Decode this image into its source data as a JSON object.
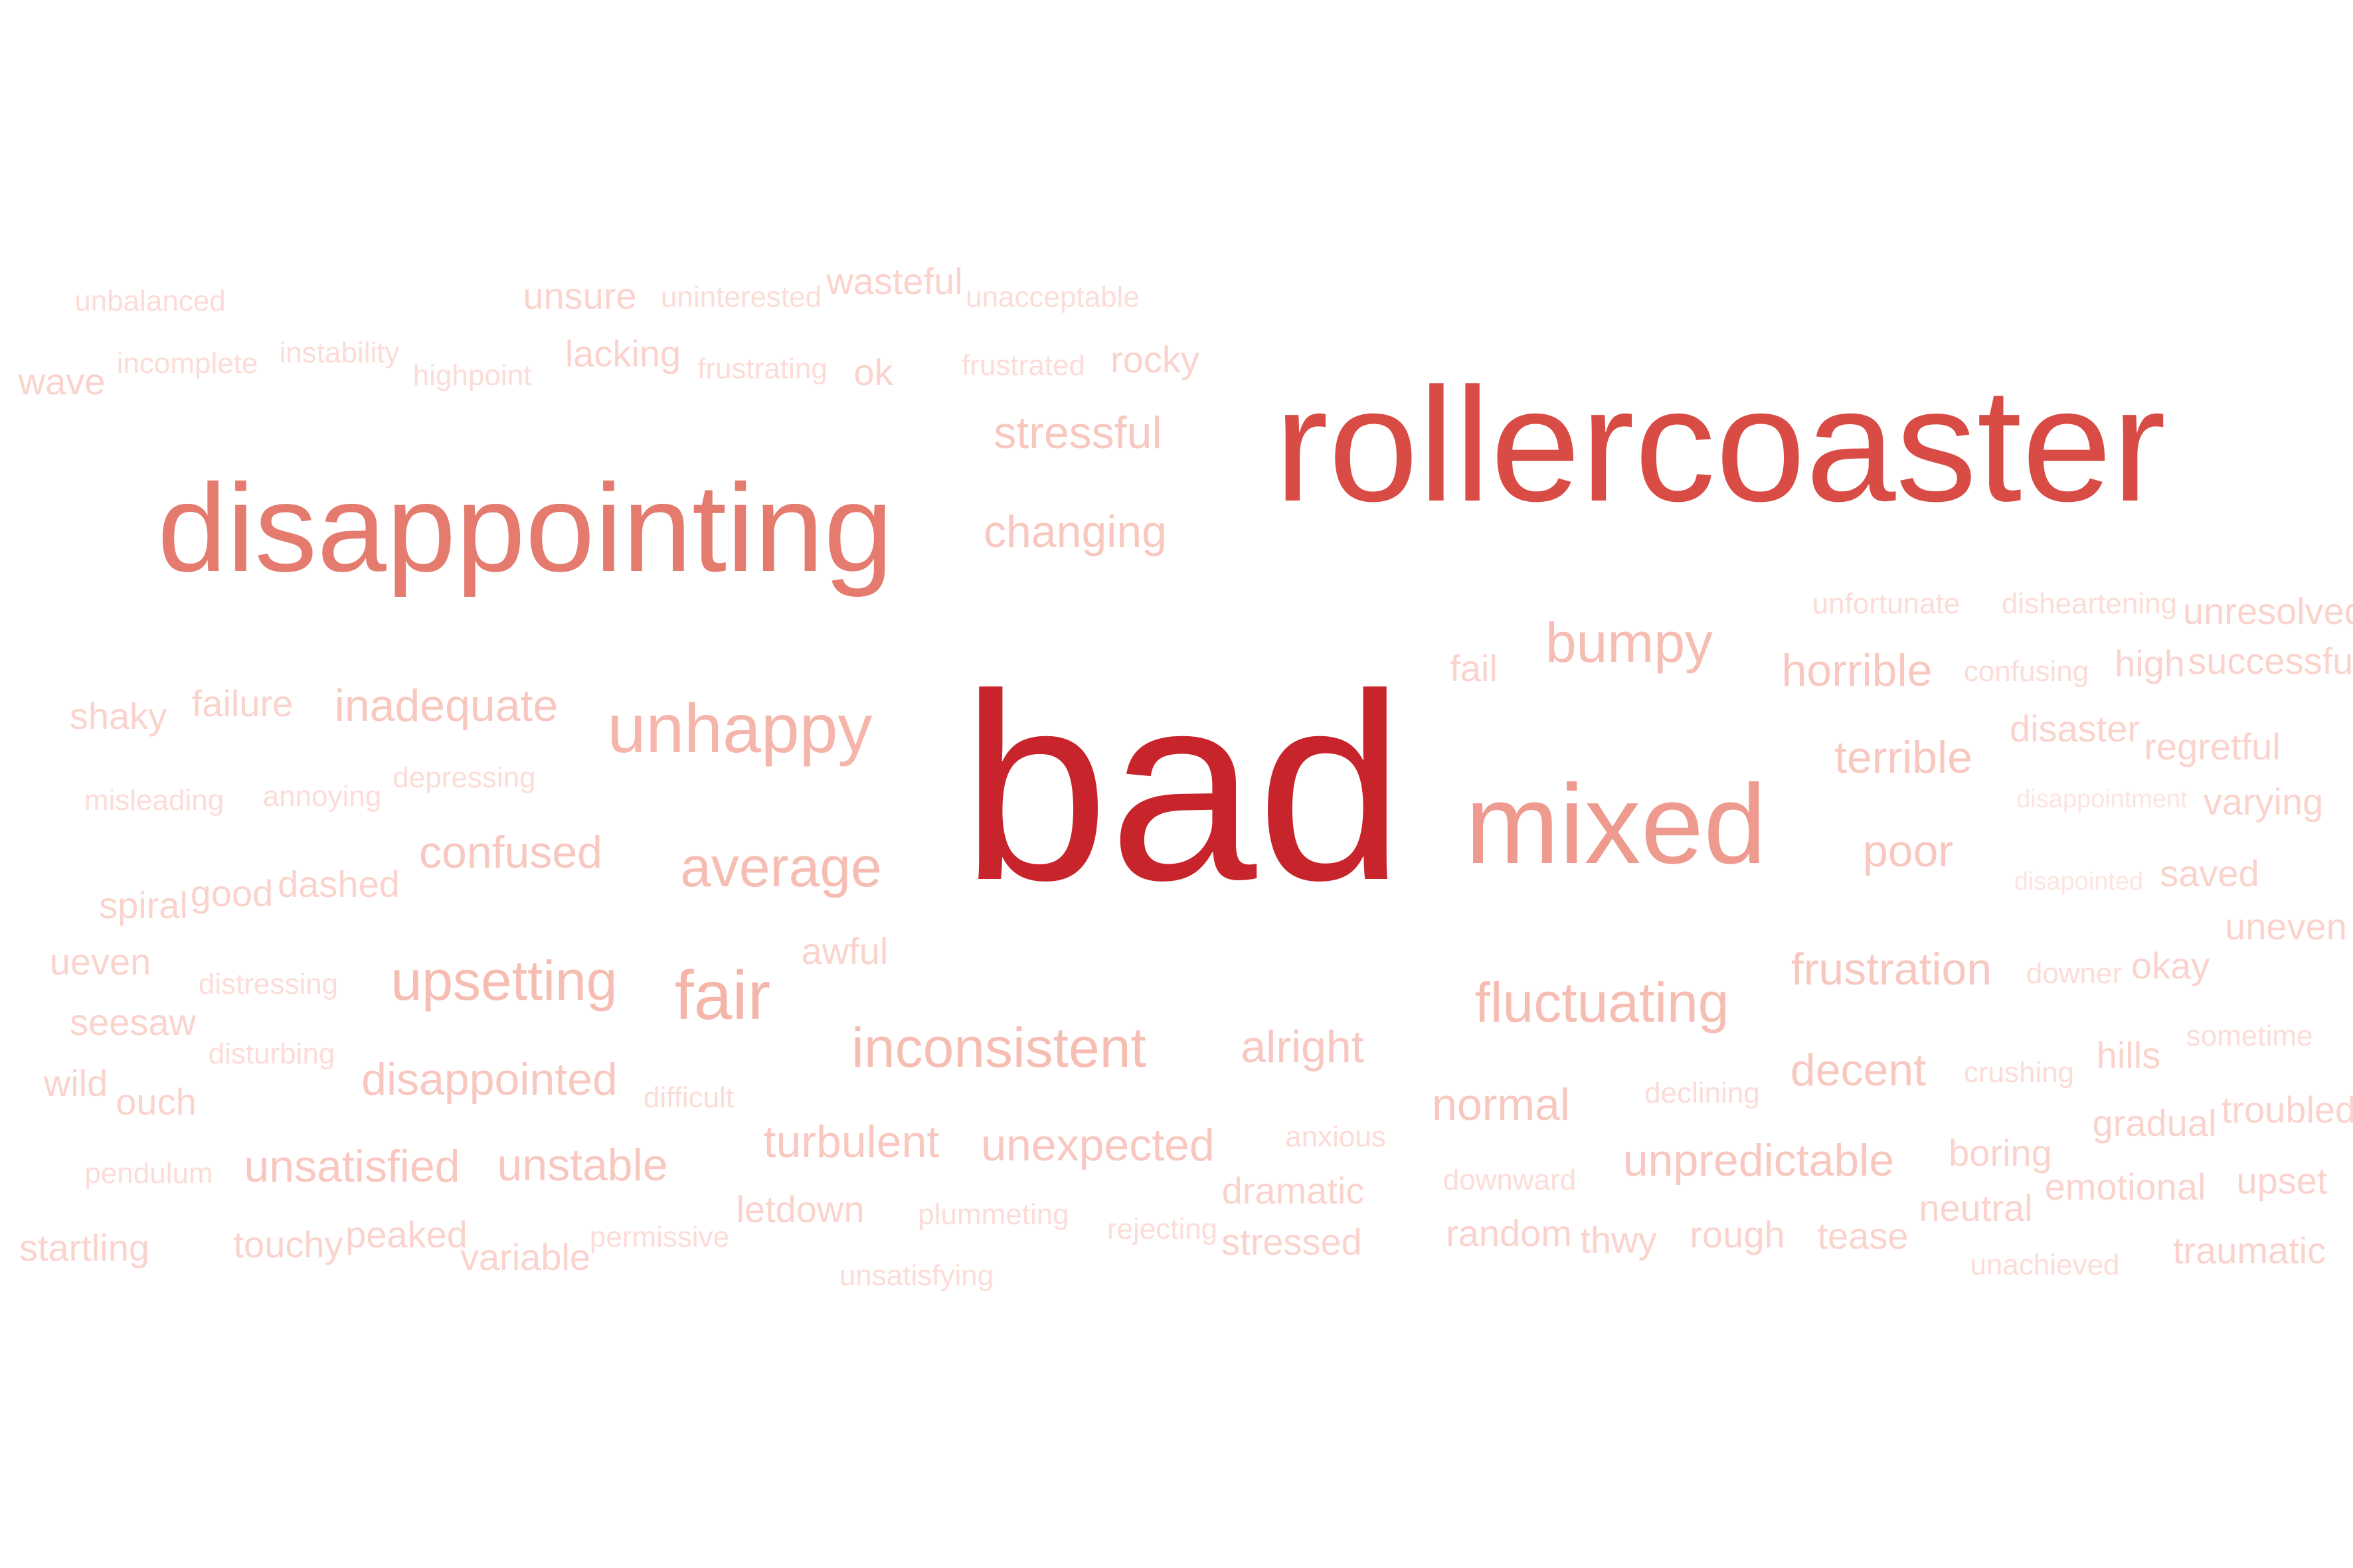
{
  "words": [
    {
      "text": "bad",
      "tier": 1
    },
    {
      "text": "rollercoaster",
      "tier": 2
    },
    {
      "text": "disappointing",
      "tier": 3
    },
    {
      "text": "mixed",
      "tier": 4
    },
    {
      "text": "unhappy",
      "tier": 5
    },
    {
      "text": "fair",
      "tier": 5
    },
    {
      "text": "bumpy",
      "tier": 6
    },
    {
      "text": "average",
      "tier": 6
    },
    {
      "text": "upsetting",
      "tier": 6
    },
    {
      "text": "inconsistent",
      "tier": 6
    },
    {
      "text": "fluctuating",
      "tier": 6
    },
    {
      "text": "stressful",
      "tier": 7
    },
    {
      "text": "changing",
      "tier": 7
    },
    {
      "text": "horrible",
      "tier": 7
    },
    {
      "text": "terrible",
      "tier": 7
    },
    {
      "text": "poor",
      "tier": 7
    },
    {
      "text": "inadequate",
      "tier": 7
    },
    {
      "text": "confused",
      "tier": 7
    },
    {
      "text": "frustration",
      "tier": 7
    },
    {
      "text": "decent",
      "tier": 7
    },
    {
      "text": "alright",
      "tier": 7
    },
    {
      "text": "normal",
      "tier": 7
    },
    {
      "text": "disappointed",
      "tier": 7
    },
    {
      "text": "unsatisfied",
      "tier": 7
    },
    {
      "text": "unstable",
      "tier": 7
    },
    {
      "text": "turbulent",
      "tier": 7
    },
    {
      "text": "unexpected",
      "tier": 7
    },
    {
      "text": "unpredictable",
      "tier": 7
    },
    {
      "text": "fail",
      "tier": 8
    },
    {
      "text": "unsure",
      "tier": 8
    },
    {
      "text": "ok",
      "tier": 8
    },
    {
      "text": "wave",
      "tier": 8
    },
    {
      "text": "high",
      "tier": 8
    },
    {
      "text": "okay",
      "tier": 8
    },
    {
      "text": "hills",
      "tier": 8
    },
    {
      "text": "uneven",
      "tier": 8
    },
    {
      "text": "upset",
      "tier": 8
    },
    {
      "text": "saved",
      "tier": 8
    },
    {
      "text": "varying",
      "tier": 8
    },
    {
      "text": "neutral",
      "tier": 8
    },
    {
      "text": "tease",
      "tier": 8
    },
    {
      "text": "rough",
      "tier": 8
    },
    {
      "text": "thwy",
      "tier": 8
    },
    {
      "text": "random",
      "tier": 8
    },
    {
      "text": "stressed",
      "tier": 8
    },
    {
      "text": "dramatic",
      "tier": 8
    },
    {
      "text": "ouch",
      "tier": 8
    },
    {
      "text": "wild",
      "tier": 8
    },
    {
      "text": "seesaw",
      "tier": 8
    },
    {
      "text": "ueven",
      "tier": 8
    },
    {
      "text": "spiral",
      "tier": 8
    },
    {
      "text": "good",
      "tier": 8
    },
    {
      "text": "dashed",
      "tier": 8
    },
    {
      "text": "shaky",
      "tier": 8
    },
    {
      "text": "failure",
      "tier": 8
    },
    {
      "text": "lacking",
      "tier": 8
    },
    {
      "text": "rocky",
      "tier": 8
    },
    {
      "text": "wasteful",
      "tier": 8
    },
    {
      "text": "awful",
      "tier": 8
    },
    {
      "text": "touchy",
      "tier": 8
    },
    {
      "text": "peaked",
      "tier": 8
    },
    {
      "text": "variable",
      "tier": 8
    },
    {
      "text": "startling",
      "tier": 8
    },
    {
      "text": "letdown",
      "tier": 8
    },
    {
      "text": "boring",
      "tier": 8
    },
    {
      "text": "gradual",
      "tier": 8
    },
    {
      "text": "troubled",
      "tier": 8
    },
    {
      "text": "emotional",
      "tier": 8
    },
    {
      "text": "traumatic",
      "tier": 8
    },
    {
      "text": "regretful",
      "tier": 8
    },
    {
      "text": "disaster",
      "tier": 8
    },
    {
      "text": "successful",
      "tier": 8
    },
    {
      "text": "unresolved",
      "tier": 8
    },
    {
      "text": "instability",
      "tier": 9
    },
    {
      "text": "incomplete",
      "tier": 9
    },
    {
      "text": "highpoint",
      "tier": 9
    },
    {
      "text": "unbalanced",
      "tier": 9
    },
    {
      "text": "uninterested",
      "tier": 9
    },
    {
      "text": "unacceptable",
      "tier": 9
    },
    {
      "text": "frustrating",
      "tier": 9
    },
    {
      "text": "frustrated",
      "tier": 9
    },
    {
      "text": "misleading",
      "tier": 9
    },
    {
      "text": "annoying",
      "tier": 9
    },
    {
      "text": "depressing",
      "tier": 9
    },
    {
      "text": "distressing",
      "tier": 9
    },
    {
      "text": "disturbing",
      "tier": 9
    },
    {
      "text": "difficult",
      "tier": 9
    },
    {
      "text": "pendulum",
      "tier": 9
    },
    {
      "text": "permissive",
      "tier": 9
    },
    {
      "text": "plummeting",
      "tier": 9
    },
    {
      "text": "rejecting",
      "tier": 9
    },
    {
      "text": "unsatisfying",
      "tier": 9
    },
    {
      "text": "anxious",
      "tier": 9
    },
    {
      "text": "downward",
      "tier": 9
    },
    {
      "text": "declining",
      "tier": 9
    },
    {
      "text": "crushing",
      "tier": 9
    },
    {
      "text": "downer",
      "tier": 9
    },
    {
      "text": "sometime",
      "tier": 9
    },
    {
      "text": "unachieved",
      "tier": 9
    },
    {
      "text": "unfortunate",
      "tier": 9
    },
    {
      "text": "disheartening",
      "tier": 9
    },
    {
      "text": "confusing",
      "tier": 9
    },
    {
      "text": "disappointment",
      "tier": 10
    },
    {
      "text": "disapointed",
      "tier": 10
    }
  ]
}
